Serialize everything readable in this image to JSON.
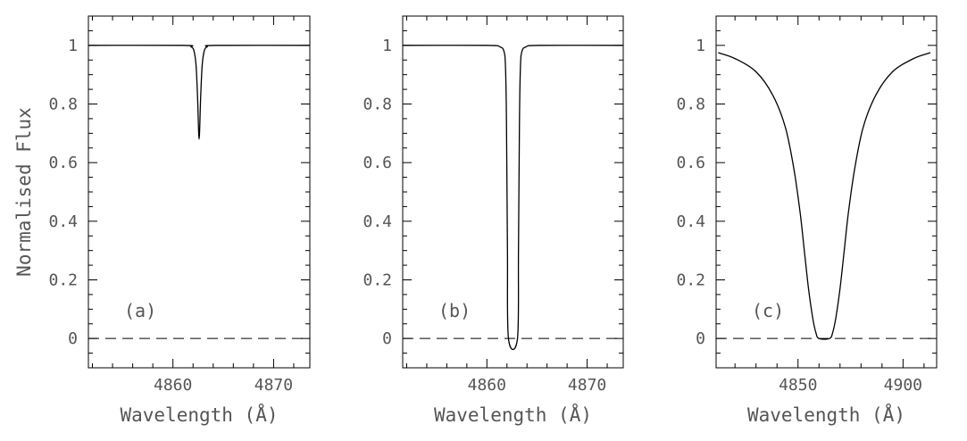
{
  "figure": {
    "ylabel": "Normalised Flux",
    "line_color": "#000000",
    "text_color": "#555555"
  },
  "chart_data": [
    {
      "type": "line",
      "panel_label": "(a)",
      "xlabel": "Wavelength (Å)",
      "xlim": [
        4851.6,
        4873.6
      ],
      "ylim": [
        -0.1,
        1.1
      ],
      "xticks_labeled": [
        4860,
        4870
      ],
      "yticks_labeled": [
        0,
        0.2,
        0.4,
        0.6,
        0.8,
        1
      ],
      "ytick_labels": [
        "0",
        "0.2",
        "0.4",
        "0.6",
        "0.8",
        "1"
      ],
      "reference_line": {
        "y": 0,
        "style": "dashed"
      },
      "series": [
        {
          "x": [
            4851.6,
            4861.0,
            4861.8,
            4862.1,
            4862.3,
            4862.45,
            4862.6,
            4862.75,
            4862.9,
            4863.1,
            4863.4,
            4864.2,
            4873.6
          ],
          "y": [
            1.0,
            1.0,
            0.995,
            0.98,
            0.93,
            0.82,
            0.68,
            0.82,
            0.93,
            0.98,
            0.995,
            1.0,
            1.0
          ]
        }
      ]
    },
    {
      "type": "line",
      "panel_label": "(b)",
      "xlabel": "Wavelength (Å)",
      "xlim": [
        4851.6,
        4873.6
      ],
      "ylim": [
        -0.1,
        1.1
      ],
      "xticks_labeled": [
        4860,
        4870
      ],
      "yticks_labeled": [
        0,
        0.2,
        0.4,
        0.6,
        0.8,
        1
      ],
      "ytick_labels": [
        "0",
        "0.2",
        "0.4",
        "0.6",
        "0.8",
        "1"
      ],
      "reference_line": {
        "y": 0,
        "style": "dashed"
      },
      "series": [
        {
          "x": [
            4851.6,
            4860.0,
            4861.3,
            4861.7,
            4861.85,
            4861.95,
            4862.05,
            4862.15,
            4863.05,
            4863.15,
            4863.25,
            4863.35,
            4863.5,
            4863.9,
            4865.2,
            4873.6
          ],
          "y": [
            1.0,
            1.0,
            0.995,
            0.98,
            0.93,
            0.75,
            0.3,
            0.0,
            0.0,
            0.3,
            0.75,
            0.93,
            0.98,
            0.995,
            1.0,
            1.0
          ]
        }
      ]
    },
    {
      "type": "line",
      "panel_label": "(c)",
      "xlabel": "Wavelength (Å)",
      "xlim": [
        4811,
        4916
      ],
      "ylim": [
        -0.1,
        1.1
      ],
      "xticks_labeled": [
        4850,
        4900
      ],
      "yticks_labeled": [
        0,
        0.2,
        0.4,
        0.6,
        0.8,
        1
      ],
      "ytick_labels": [
        "0",
        "0.2",
        "0.4",
        "0.6",
        "0.8",
        "1"
      ],
      "reference_line": {
        "y": 0,
        "style": "dashed"
      },
      "series": [
        {
          "x": [
            4812,
            4820,
            4830,
            4838,
            4844,
            4848,
            4851,
            4853,
            4855,
            4857,
            4858.5,
            4860,
            4865,
            4866.5,
            4868,
            4870,
            4872,
            4874,
            4877,
            4881,
            4887,
            4895,
            4905,
            4913
          ],
          "y": [
            0.975,
            0.955,
            0.91,
            0.83,
            0.72,
            0.58,
            0.43,
            0.3,
            0.17,
            0.07,
            0.02,
            0.0,
            0.0,
            0.02,
            0.07,
            0.17,
            0.3,
            0.43,
            0.58,
            0.72,
            0.83,
            0.91,
            0.955,
            0.975
          ]
        }
      ]
    }
  ]
}
